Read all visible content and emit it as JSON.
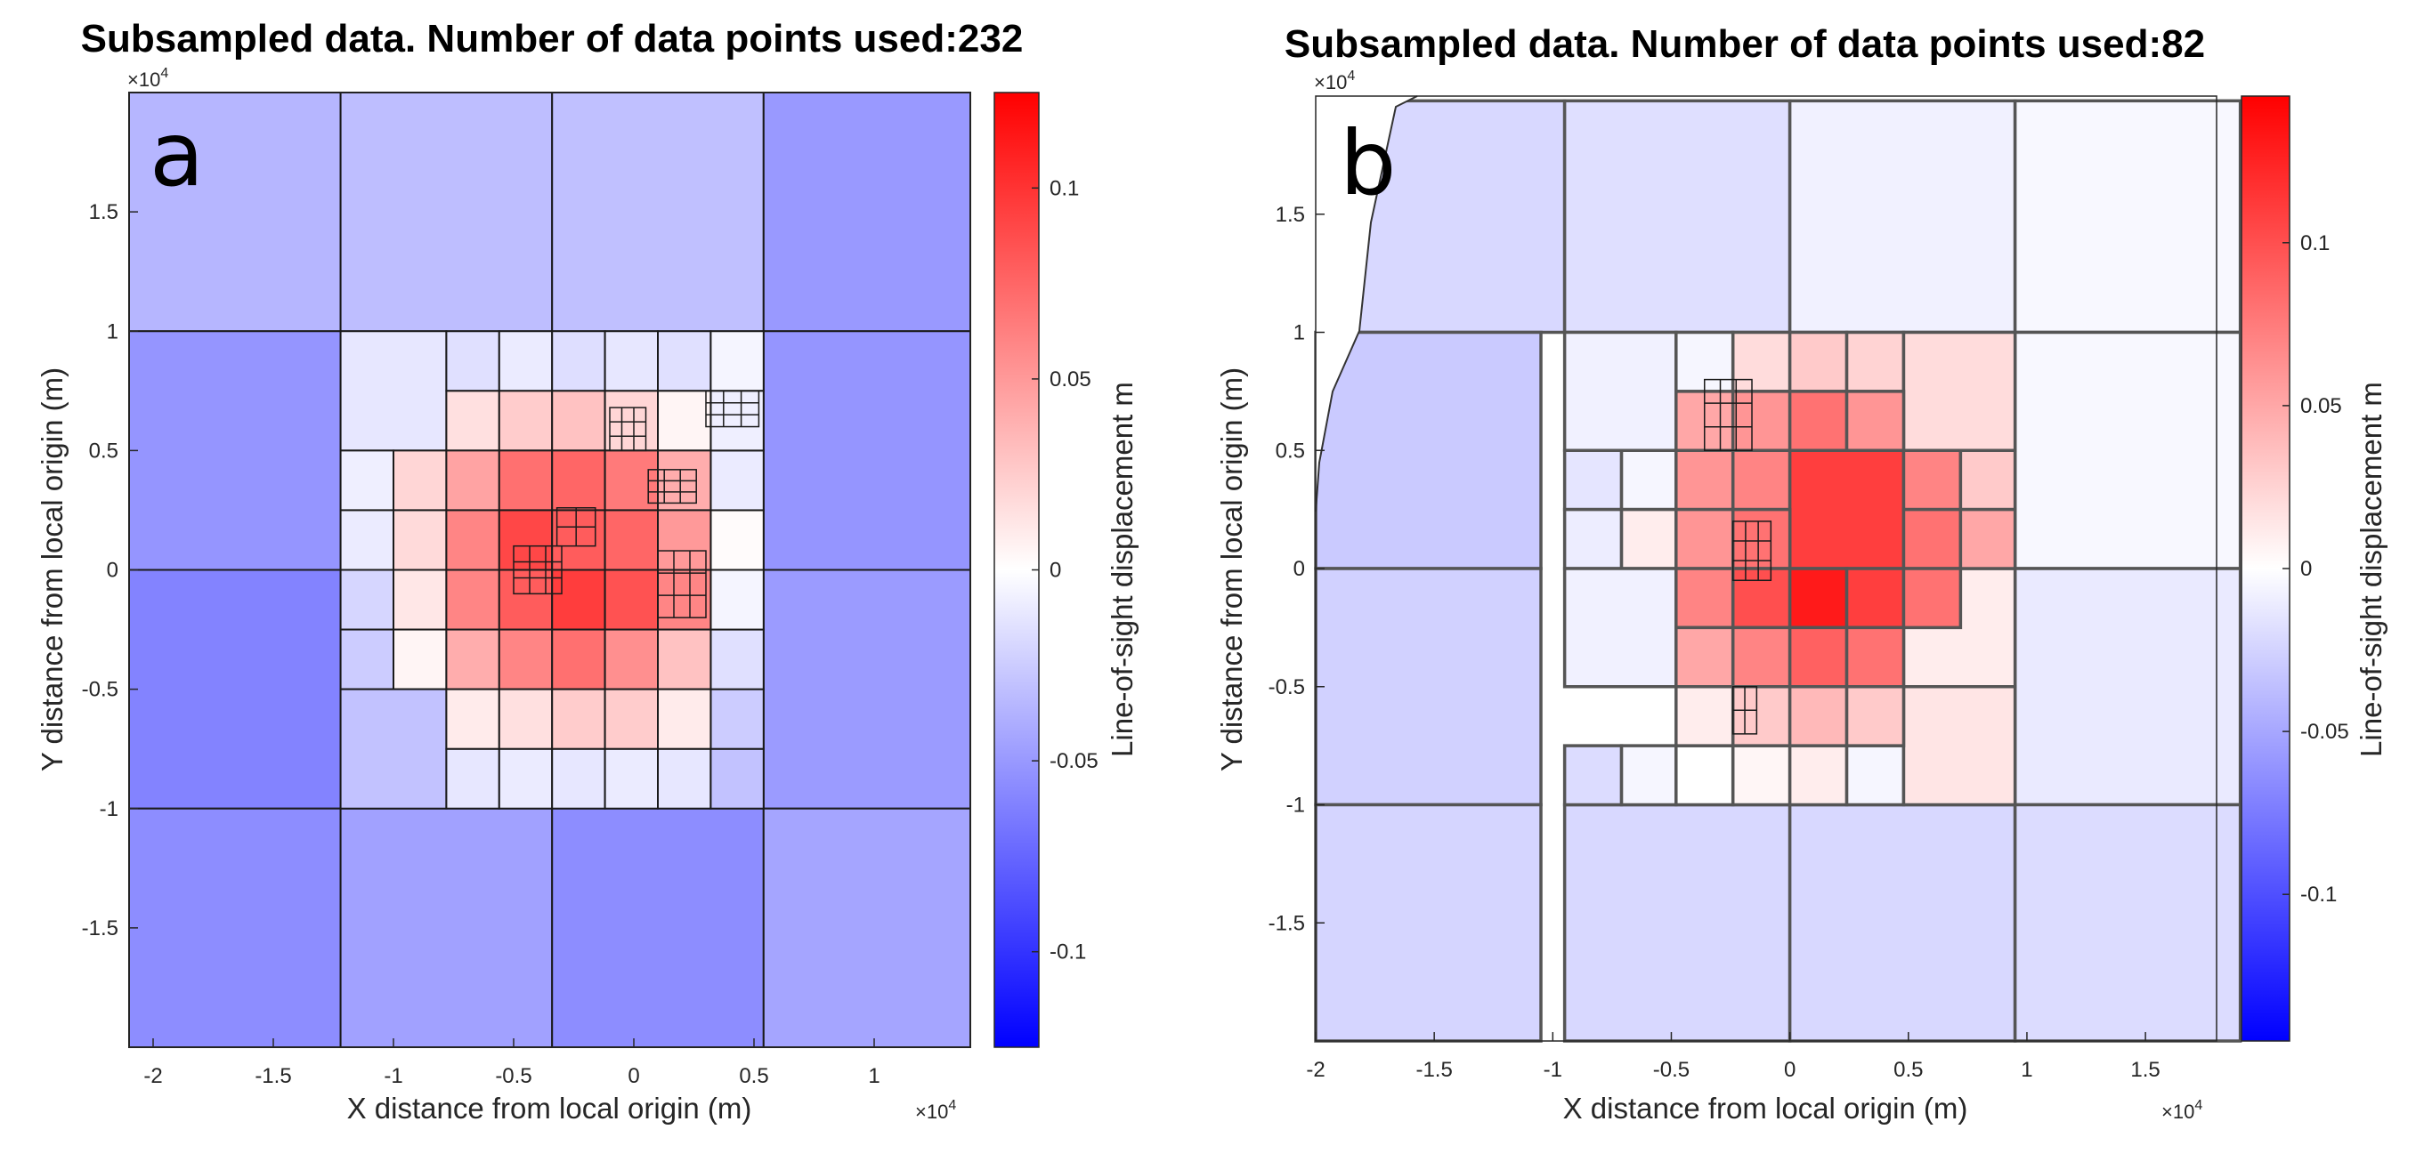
{
  "chart_data": [
    {
      "type": "heatmap",
      "panel_letter": "a",
      "title": "Subsampled data. Number of data points used:232",
      "xlabel": "X distance from local origin (m)",
      "ylabel": "Y distance from local origin (m)",
      "colorbar_label": "Line-of-sight displacement m",
      "axis_multiplier": "×10",
      "axis_multiplier_exp": "4",
      "xlim": [
        -2.1,
        1.4
      ],
      "ylim": [
        -2.0,
        2.0
      ],
      "xticks": [
        {
          "v": -2,
          "label": "-2"
        },
        {
          "v": -1.5,
          "label": "-1.5"
        },
        {
          "v": -1,
          "label": "-1"
        },
        {
          "v": -0.5,
          "label": "-0.5"
        },
        {
          "v": 0,
          "label": "0"
        },
        {
          "v": 0.5,
          "label": "0.5"
        },
        {
          "v": 1,
          "label": "1"
        }
      ],
      "yticks": [
        {
          "v": 1.5,
          "label": "1.5"
        },
        {
          "v": 1,
          "label": "1"
        },
        {
          "v": 0.5,
          "label": "0.5"
        },
        {
          "v": 0,
          "label": "0"
        },
        {
          "v": -0.5,
          "label": "-0.5"
        },
        {
          "v": -1,
          "label": "-1"
        },
        {
          "v": -1.5,
          "label": "-1.5"
        }
      ],
      "clim": [
        -0.125,
        0.125
      ],
      "cticks": [
        {
          "v": 0.1,
          "label": "0.1"
        },
        {
          "v": 0.05,
          "label": "0.05"
        },
        {
          "v": 0,
          "label": "0"
        },
        {
          "v": -0.05,
          "label": "-0.05"
        },
        {
          "v": -0.1,
          "label": "-0.1"
        }
      ],
      "cells": [
        [
          -2.1,
          1.0,
          0.88,
          1.0,
          -0.036
        ],
        [
          -1.22,
          1.0,
          0.88,
          1.0,
          -0.032
        ],
        [
          -0.34,
          1.0,
          0.88,
          1.0,
          -0.031
        ],
        [
          0.54,
          1.0,
          0.86,
          1.0,
          -0.05
        ],
        [
          -2.1,
          0.0,
          0.88,
          1.0,
          -0.052
        ],
        [
          0.54,
          0.0,
          0.86,
          1.0,
          -0.052
        ],
        [
          -2.1,
          -1.0,
          0.88,
          1.0,
          -0.061
        ],
        [
          0.54,
          -1.0,
          0.86,
          1.0,
          -0.049
        ],
        [
          -2.1,
          -2.0,
          0.88,
          1.0,
          -0.056
        ],
        [
          -1.22,
          -2.0,
          0.88,
          1.0,
          -0.046
        ],
        [
          -0.34,
          -2.0,
          0.88,
          1.0,
          -0.056
        ],
        [
          0.54,
          -2.0,
          0.86,
          1.0,
          -0.044
        ],
        [
          -1.22,
          0.5,
          0.44,
          0.5,
          -0.012
        ],
        [
          -0.78,
          0.75,
          0.22,
          0.25,
          -0.015
        ],
        [
          -0.56,
          0.75,
          0.22,
          0.25,
          -0.01
        ],
        [
          -0.34,
          0.75,
          0.22,
          0.25,
          -0.016
        ],
        [
          -0.12,
          0.75,
          0.22,
          0.25,
          -0.012
        ],
        [
          0.1,
          0.75,
          0.22,
          0.25,
          -0.015
        ],
        [
          0.32,
          0.75,
          0.22,
          0.25,
          -0.005
        ],
        [
          -1.22,
          0.25,
          0.22,
          0.25,
          -0.008
        ],
        [
          -1.0,
          0.25,
          0.22,
          0.25,
          0.02
        ],
        [
          -1.22,
          0.0,
          0.22,
          0.25,
          -0.01
        ],
        [
          -1.0,
          0.0,
          0.22,
          0.25,
          0.018
        ],
        [
          -1.22,
          -0.25,
          0.22,
          0.25,
          -0.02
        ],
        [
          -1.0,
          -0.25,
          0.22,
          0.25,
          0.012
        ],
        [
          -1.22,
          -0.5,
          0.22,
          0.25,
          -0.025
        ],
        [
          -1.0,
          -0.5,
          0.22,
          0.25,
          0.005
        ],
        [
          -1.22,
          -1.0,
          0.44,
          0.5,
          -0.03
        ],
        [
          -0.78,
          -1.0,
          0.22,
          0.25,
          -0.012
        ],
        [
          -0.56,
          -1.0,
          0.22,
          0.25,
          -0.01
        ],
        [
          -0.34,
          -1.0,
          0.22,
          0.25,
          -0.012
        ],
        [
          -0.12,
          -1.0,
          0.22,
          0.25,
          -0.01
        ],
        [
          0.1,
          -1.0,
          0.22,
          0.25,
          -0.012
        ],
        [
          0.32,
          -1.0,
          0.22,
          0.25,
          -0.03
        ],
        [
          0.32,
          -0.75,
          0.22,
          0.25,
          -0.025
        ],
        [
          0.32,
          -0.5,
          0.22,
          0.25,
          -0.015
        ],
        [
          0.32,
          -0.25,
          0.22,
          0.25,
          -0.005
        ],
        [
          0.32,
          0.0,
          0.22,
          0.25,
          0.002
        ],
        [
          0.32,
          0.25,
          0.22,
          0.25,
          -0.01
        ],
        [
          0.32,
          0.5,
          0.22,
          0.25,
          -0.008
        ],
        [
          -0.78,
          0.5,
          0.22,
          0.25,
          0.015
        ],
        [
          -0.56,
          0.5,
          0.22,
          0.25,
          0.025
        ],
        [
          -0.34,
          0.5,
          0.22,
          0.25,
          0.03
        ],
        [
          -0.12,
          0.5,
          0.22,
          0.25,
          0.02
        ],
        [
          0.1,
          0.5,
          0.22,
          0.25,
          0.005
        ],
        [
          -0.78,
          0.25,
          0.22,
          0.25,
          0.045
        ],
        [
          -0.56,
          0.25,
          0.22,
          0.25,
          0.07
        ],
        [
          -0.34,
          0.25,
          0.22,
          0.25,
          0.075
        ],
        [
          -0.12,
          0.25,
          0.22,
          0.25,
          0.065
        ],
        [
          0.1,
          0.25,
          0.22,
          0.25,
          0.04
        ],
        [
          -0.78,
          0.0,
          0.22,
          0.25,
          0.06
        ],
        [
          -0.56,
          0.0,
          0.22,
          0.25,
          0.09
        ],
        [
          -0.34,
          0.0,
          0.22,
          0.25,
          0.08
        ],
        [
          -0.12,
          0.0,
          0.22,
          0.25,
          0.075
        ],
        [
          0.1,
          0.0,
          0.22,
          0.25,
          0.05
        ],
        [
          -0.78,
          -0.25,
          0.22,
          0.25,
          0.06
        ],
        [
          -0.56,
          -0.25,
          0.22,
          0.25,
          0.08
        ],
        [
          -0.34,
          -0.25,
          0.22,
          0.25,
          0.095
        ],
        [
          -0.12,
          -0.25,
          0.22,
          0.25,
          0.085
        ],
        [
          0.1,
          -0.25,
          0.22,
          0.25,
          0.06
        ],
        [
          -0.78,
          -0.5,
          0.22,
          0.25,
          0.04
        ],
        [
          -0.56,
          -0.5,
          0.22,
          0.25,
          0.06
        ],
        [
          -0.34,
          -0.5,
          0.22,
          0.25,
          0.07
        ],
        [
          -0.12,
          -0.5,
          0.22,
          0.25,
          0.055
        ],
        [
          0.1,
          -0.5,
          0.22,
          0.25,
          0.03
        ],
        [
          -0.78,
          -0.75,
          0.22,
          0.25,
          0.01
        ],
        [
          -0.56,
          -0.75,
          0.22,
          0.25,
          0.015
        ],
        [
          -0.34,
          -0.75,
          0.22,
          0.25,
          0.025
        ],
        [
          -0.12,
          -0.75,
          0.22,
          0.25,
          0.025
        ],
        [
          0.1,
          -0.75,
          0.22,
          0.25,
          0.01
        ]
      ],
      "fine_grid": [
        [
          -0.5,
          -0.1,
          0.2,
          0.2,
          3
        ],
        [
          -0.32,
          0.1,
          0.16,
          0.16,
          2
        ],
        [
          0.1,
          -0.2,
          0.2,
          0.28,
          3
        ],
        [
          0.06,
          0.28,
          0.2,
          0.14,
          3
        ],
        [
          0.3,
          0.6,
          0.22,
          0.15,
          3
        ],
        [
          -0.1,
          0.5,
          0.15,
          0.18,
          3
        ]
      ]
    },
    {
      "type": "heatmap",
      "panel_letter": "b",
      "title": "Subsampled data. Number of data points used:82",
      "xlabel": "X distance from local origin (m)",
      "ylabel": "Y distance from local origin (m)",
      "colorbar_label": "Line-of-sight displacement m",
      "axis_multiplier": "×10",
      "axis_multiplier_exp": "4",
      "xlim": [
        -2.0,
        1.8
      ],
      "ylim": [
        -2.0,
        2.0
      ],
      "xticks": [
        {
          "v": -2,
          "label": "-2"
        },
        {
          "v": -1.5,
          "label": "-1.5"
        },
        {
          "v": -1,
          "label": "-1"
        },
        {
          "v": -0.5,
          "label": "-0.5"
        },
        {
          "v": 0,
          "label": "0"
        },
        {
          "v": 0.5,
          "label": "0.5"
        },
        {
          "v": 1,
          "label": "1"
        },
        {
          "v": 1.5,
          "label": "1.5"
        }
      ],
      "yticks": [
        {
          "v": 1.5,
          "label": "1.5"
        },
        {
          "v": 1,
          "label": "1"
        },
        {
          "v": 0.5,
          "label": "0.5"
        },
        {
          "v": 0,
          "label": "0"
        },
        {
          "v": -0.5,
          "label": "-0.5"
        },
        {
          "v": -1,
          "label": "-1"
        },
        {
          "v": -1.5,
          "label": "-1.5"
        }
      ],
      "clim": [
        -0.145,
        0.145
      ],
      "cticks": [
        {
          "v": 0.1,
          "label": "0.1"
        },
        {
          "v": 0.05,
          "label": "0.05"
        },
        {
          "v": 0,
          "label": "0"
        },
        {
          "v": -0.05,
          "label": "-0.05"
        },
        {
          "v": -0.1,
          "label": "-0.1"
        }
      ],
      "cells": [
        [
          -1.9,
          1.0,
          0.95,
          0.98,
          -0.022
        ],
        [
          -0.95,
          1.0,
          0.95,
          0.98,
          -0.018
        ],
        [
          0.0,
          1.0,
          0.95,
          0.98,
          -0.008
        ],
        [
          0.95,
          1.0,
          0.95,
          0.98,
          -0.004
        ],
        [
          -2.0,
          0.0,
          0.95,
          1.0,
          -0.03
        ],
        [
          0.95,
          0.0,
          0.95,
          1.0,
          -0.004
        ],
        [
          -2.0,
          -1.0,
          0.95,
          1.0,
          -0.026
        ],
        [
          0.95,
          -1.0,
          0.95,
          1.0,
          -0.012
        ],
        [
          -2.0,
          -2.0,
          0.95,
          1.0,
          -0.024
        ],
        [
          -0.95,
          -2.0,
          0.95,
          1.0,
          -0.022
        ],
        [
          0.0,
          -2.0,
          0.95,
          1.0,
          -0.022
        ],
        [
          0.95,
          -2.0,
          0.95,
          1.0,
          -0.02
        ],
        [
          -0.95,
          0.5,
          0.47,
          0.5,
          -0.008
        ],
        [
          -0.48,
          0.75,
          0.24,
          0.25,
          -0.005
        ],
        [
          -0.24,
          0.75,
          0.24,
          0.25,
          0.02
        ],
        [
          0.0,
          0.75,
          0.24,
          0.25,
          0.03
        ],
        [
          0.24,
          0.75,
          0.24,
          0.25,
          0.025
        ],
        [
          0.48,
          0.5,
          0.47,
          0.5,
          0.02
        ],
        [
          -0.95,
          0.25,
          0.24,
          0.25,
          -0.015
        ],
        [
          -0.71,
          0.25,
          0.23,
          0.25,
          -0.005
        ],
        [
          -0.95,
          0.0,
          0.24,
          0.25,
          -0.01
        ],
        [
          -0.71,
          0.0,
          0.23,
          0.25,
          0.01
        ],
        [
          -0.95,
          -0.5,
          0.47,
          0.5,
          -0.008
        ],
        [
          0.48,
          -0.5,
          0.47,
          0.5,
          0.01
        ],
        [
          -0.95,
          -1.0,
          0.24,
          0.25,
          -0.02
        ],
        [
          -0.71,
          -1.0,
          0.23,
          0.25,
          -0.005
        ],
        [
          -0.48,
          -1.0,
          0.24,
          0.25,
          0.0
        ],
        [
          -0.24,
          -1.0,
          0.24,
          0.25,
          0.005
        ],
        [
          0.0,
          -1.0,
          0.24,
          0.25,
          0.01
        ],
        [
          0.24,
          -1.0,
          0.24,
          0.25,
          -0.005
        ],
        [
          0.48,
          -1.0,
          0.47,
          0.5,
          0.015
        ],
        [
          -0.48,
          0.5,
          0.24,
          0.25,
          0.05
        ],
        [
          -0.24,
          0.5,
          0.24,
          0.25,
          0.06
        ],
        [
          0.0,
          0.5,
          0.24,
          0.25,
          0.08
        ],
        [
          0.24,
          0.5,
          0.24,
          0.25,
          0.06
        ],
        [
          -0.48,
          0.25,
          0.24,
          0.25,
          0.06
        ],
        [
          -0.24,
          0.25,
          0.24,
          0.25,
          0.07
        ],
        [
          0.0,
          0.0,
          0.48,
          0.5,
          0.11
        ],
        [
          0.48,
          0.25,
          0.24,
          0.25,
          0.07
        ],
        [
          0.72,
          0.25,
          0.23,
          0.25,
          0.03
        ],
        [
          -0.48,
          0.0,
          0.24,
          0.25,
          0.06
        ],
        [
          -0.24,
          0.0,
          0.24,
          0.25,
          0.08
        ],
        [
          0.48,
          0.0,
          0.24,
          0.25,
          0.08
        ],
        [
          0.72,
          0.0,
          0.23,
          0.25,
          0.05
        ],
        [
          -0.48,
          -0.25,
          0.24,
          0.25,
          0.07
        ],
        [
          -0.24,
          -0.25,
          0.24,
          0.25,
          0.1
        ],
        [
          0.0,
          -0.25,
          0.24,
          0.25,
          0.13
        ],
        [
          0.24,
          -0.25,
          0.24,
          0.25,
          0.11
        ],
        [
          0.48,
          -0.25,
          0.24,
          0.25,
          0.08
        ],
        [
          -0.48,
          -0.5,
          0.24,
          0.25,
          0.05
        ],
        [
          -0.24,
          -0.5,
          0.24,
          0.25,
          0.07
        ],
        [
          0.0,
          -0.5,
          0.24,
          0.25,
          0.09
        ],
        [
          0.24,
          -0.5,
          0.24,
          0.25,
          0.08
        ],
        [
          -0.48,
          -0.75,
          0.24,
          0.25,
          0.01
        ],
        [
          -0.24,
          -0.75,
          0.24,
          0.25,
          0.03
        ],
        [
          0.0,
          -0.75,
          0.24,
          0.25,
          0.04
        ],
        [
          0.24,
          -0.75,
          0.24,
          0.25,
          0.03
        ]
      ],
      "fine_grid": [
        [
          -0.36,
          0.5,
          0.2,
          0.3,
          3
        ],
        [
          -0.24,
          -0.05,
          0.16,
          0.25,
          3
        ],
        [
          -0.24,
          -0.7,
          0.1,
          0.2,
          2
        ]
      ]
    }
  ]
}
